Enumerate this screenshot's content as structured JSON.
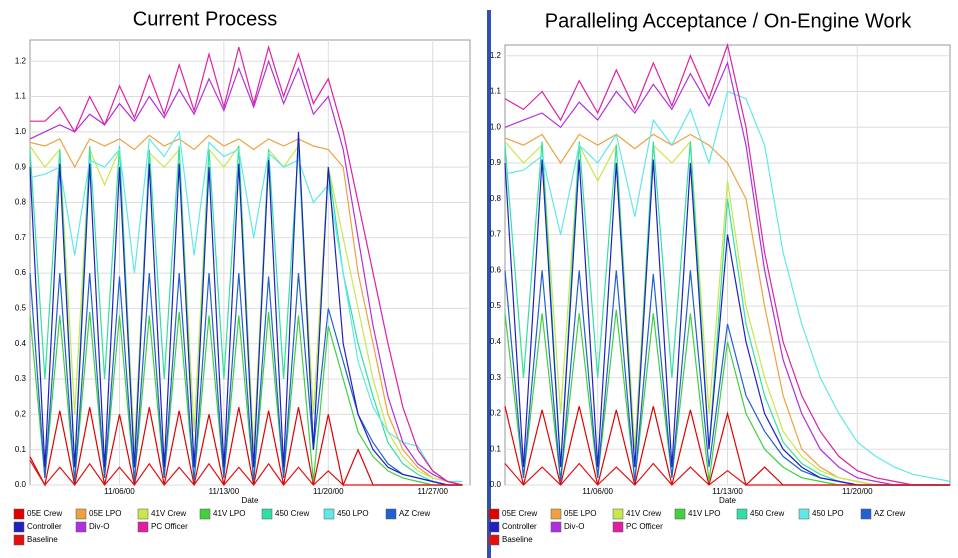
{
  "chart_data": [
    {
      "type": "line",
      "title": "Current Process",
      "x_label": "Date",
      "x": [
        0,
        1,
        2,
        3,
        4,
        5,
        6,
        7,
        8,
        9,
        10,
        11,
        12,
        13,
        14,
        15,
        16,
        17,
        18,
        19,
        20,
        21,
        22,
        23,
        24,
        25,
        26,
        27,
        28,
        29
      ],
      "xlim": [
        0,
        29.5
      ],
      "xticks": [
        {
          "value": 6,
          "label": "11/06/00"
        },
        {
          "value": 13,
          "label": "11/13/00"
        },
        {
          "value": 20,
          "label": "11/20/00"
        },
        {
          "value": 27,
          "label": "11/27/00"
        }
      ],
      "ylim": [
        0,
        1.26
      ],
      "yticks": [
        {
          "value": 0,
          "label": "0.0"
        },
        0.1,
        0.2,
        0.3,
        0.4,
        0.5,
        0.6,
        0.7,
        0.8,
        0.9,
        {
          "value": 1,
          "label": "1.0"
        },
        1.1,
        1.2
      ],
      "grid": true,
      "series": [
        {
          "name": "05E Crew",
          "color": "#e00000",
          "values": [
            0.08,
            0,
            0.21,
            0,
            0.22,
            0,
            0.2,
            0,
            0.22,
            0,
            0.21,
            0,
            0.2,
            0,
            0.22,
            0,
            0.21,
            0,
            0.22,
            0,
            0.2,
            0,
            0.1,
            0,
            0,
            0,
            0,
            0,
            0,
            0
          ]
        },
        {
          "name": "05E LPO",
          "color": "#f0a040",
          "values": [
            0.97,
            0.96,
            0.98,
            0.9,
            0.98,
            0.96,
            0.98,
            0.95,
            0.99,
            0.96,
            0.98,
            0.95,
            0.99,
            0.96,
            0.98,
            0.95,
            0.98,
            0.96,
            0.98,
            0.96,
            0.95,
            0.9,
            0.6,
            0.4,
            0.2,
            0.1,
            0.05,
            0.02,
            0.01,
            0
          ]
        },
        {
          "name": "41V Crew",
          "color": "#c8e84a",
          "values": [
            0.96,
            0.9,
            0.95,
            0.2,
            0.95,
            0.85,
            0.95,
            0.1,
            0.94,
            0.9,
            0.95,
            0.15,
            0.95,
            0.9,
            0.96,
            0.1,
            0.95,
            0.9,
            0.96,
            0.2,
            0.9,
            0.7,
            0.5,
            0.3,
            0.15,
            0.08,
            0.04,
            0.02,
            0.01,
            0
          ]
        },
        {
          "name": "41V LPO",
          "color": "#40d040",
          "values": [
            0.48,
            0.02,
            0.48,
            0.01,
            0.49,
            0.02,
            0.48,
            0.01,
            0.48,
            0.02,
            0.49,
            0.01,
            0.48,
            0.02,
            0.48,
            0.01,
            0.49,
            0.02,
            0.48,
            0.01,
            0.45,
            0.3,
            0.15,
            0.08,
            0.04,
            0.02,
            0.01,
            0,
            0,
            0
          ]
        },
        {
          "name": "450 Crew",
          "color": "#30e0a0",
          "values": [
            0.95,
            0.3,
            0.95,
            0.05,
            0.96,
            0.3,
            0.96,
            0.05,
            0.95,
            0.3,
            0.96,
            0.05,
            0.95,
            0.3,
            0.96,
            0.05,
            0.95,
            0.3,
            0.96,
            0.1,
            0.9,
            0.6,
            0.4,
            0.25,
            0.12,
            0.06,
            0.03,
            0.01,
            0,
            0
          ]
        },
        {
          "name": "450 LPO",
          "color": "#60e8e8",
          "values": [
            0.87,
            0.88,
            0.9,
            0.65,
            0.92,
            0.9,
            0.95,
            0.6,
            0.98,
            0.93,
            1.0,
            0.65,
            0.97,
            0.93,
            0.95,
            0.7,
            0.94,
            0.9,
            0.92,
            0.8,
            0.85,
            0.6,
            0.35,
            0.22,
            0.15,
            0.12,
            0.11,
            0.04,
            0.01,
            0.01
          ]
        },
        {
          "name": "AZ Crew",
          "color": "#2060d0",
          "values": [
            0.6,
            0.02,
            0.6,
            0.01,
            0.6,
            0.02,
            0.59,
            0.01,
            0.6,
            0.02,
            0.6,
            0.01,
            0.6,
            0.02,
            0.6,
            0.01,
            0.59,
            0.02,
            0.6,
            0.1,
            0.5,
            0.35,
            0.2,
            0.12,
            0.06,
            0.03,
            0.02,
            0.01,
            0,
            0
          ]
        },
        {
          "name": "Controller",
          "color": "#2020c0",
          "values": [
            0.9,
            0.05,
            0.91,
            0.05,
            0.91,
            0.05,
            0.9,
            0.05,
            0.91,
            0.05,
            0.91,
            0.05,
            0.9,
            0.05,
            0.91,
            0.05,
            0.92,
            0.05,
            1.0,
            0.1,
            0.9,
            0.4,
            0.2,
            0.1,
            0.05,
            0.03,
            0.02,
            0.01,
            0,
            0
          ]
        },
        {
          "name": "Div-O",
          "color": "#b030e0",
          "values": [
            0.98,
            1.0,
            1.02,
            1.0,
            1.05,
            1.02,
            1.08,
            1.03,
            1.1,
            1.04,
            1.12,
            1.05,
            1.15,
            1.06,
            1.18,
            1.07,
            1.2,
            1.08,
            1.18,
            1.05,
            1.1,
            0.95,
            0.7,
            0.45,
            0.25,
            0.12,
            0.06,
            0.03,
            0.01,
            0
          ]
        },
        {
          "name": "PC Officer",
          "color": "#e020a0",
          "values": [
            1.03,
            1.03,
            1.07,
            1.0,
            1.1,
            1.02,
            1.13,
            1.04,
            1.16,
            1.05,
            1.19,
            1.06,
            1.22,
            1.07,
            1.24,
            1.08,
            1.24,
            1.1,
            1.22,
            1.08,
            1.15,
            1.0,
            0.8,
            0.6,
            0.4,
            0.22,
            0.1,
            0.04,
            0.01,
            0
          ]
        },
        {
          "name": "Baseline",
          "color": "#e01010",
          "values": [
            0.07,
            0,
            0.05,
            0,
            0.06,
            0,
            0.05,
            0,
            0.06,
            0,
            0.05,
            0,
            0.06,
            0,
            0.05,
            0,
            0.06,
            0,
            0.05,
            0,
            0.04,
            0,
            0,
            0,
            0,
            0,
            0,
            0,
            0,
            0
          ]
        }
      ]
    },
    {
      "type": "line",
      "title": "Paralleling Acceptance / On-Engine Work",
      "x_label": "Date",
      "x": [
        1,
        2,
        3,
        4,
        5,
        6,
        7,
        8,
        9,
        10,
        11,
        12,
        13,
        14,
        15,
        16,
        17,
        18,
        19,
        20,
        21,
        22,
        23,
        24,
        25
      ],
      "xlim": [
        1,
        25
      ],
      "xticks": [
        {
          "value": 6,
          "label": "11/06/00"
        },
        {
          "value": 13,
          "label": "11/13/00"
        },
        {
          "value": 20,
          "label": "11/20/00"
        }
      ],
      "ylim": [
        0,
        1.23
      ],
      "yticks": [
        {
          "value": 0,
          "label": "0.0"
        },
        0.1,
        0.2,
        0.3,
        0.4,
        0.5,
        0.6,
        0.7,
        0.8,
        0.9,
        {
          "value": 1,
          "label": "1.0"
        },
        1.1,
        1.2
      ],
      "grid": true,
      "series": [
        {
          "name": "05E Crew",
          "color": "#e00000",
          "values": [
            0.22,
            0,
            0.21,
            0,
            0.22,
            0,
            0.21,
            0,
            0.22,
            0,
            0.21,
            0,
            0.2,
            0,
            0.05,
            0,
            0,
            0,
            0,
            0,
            0,
            0,
            0,
            0,
            0
          ]
        },
        {
          "name": "05E LPO",
          "color": "#f0a040",
          "values": [
            0.97,
            0.95,
            0.98,
            0.9,
            0.98,
            0.95,
            0.98,
            0.94,
            0.98,
            0.95,
            0.98,
            0.95,
            0.9,
            0.8,
            0.5,
            0.25,
            0.1,
            0.05,
            0.02,
            0.01,
            0,
            0,
            0,
            0,
            0
          ]
        },
        {
          "name": "41V Crew",
          "color": "#c8e84a",
          "values": [
            0.96,
            0.9,
            0.95,
            0.2,
            0.95,
            0.85,
            0.95,
            0.1,
            0.95,
            0.9,
            0.96,
            0.2,
            0.85,
            0.5,
            0.3,
            0.15,
            0.08,
            0.04,
            0.02,
            0.01,
            0,
            0,
            0,
            0,
            0
          ]
        },
        {
          "name": "41V LPO",
          "color": "#40d040",
          "values": [
            0.48,
            0.02,
            0.48,
            0.01,
            0.48,
            0.02,
            0.49,
            0.01,
            0.48,
            0.02,
            0.48,
            0.01,
            0.4,
            0.2,
            0.1,
            0.05,
            0.02,
            0.01,
            0,
            0,
            0,
            0,
            0,
            0,
            0
          ]
        },
        {
          "name": "450 Crew",
          "color": "#30e0a0",
          "values": [
            0.95,
            0.3,
            0.96,
            0.05,
            0.96,
            0.3,
            0.95,
            0.05,
            0.96,
            0.3,
            0.96,
            0.1,
            0.8,
            0.45,
            0.25,
            0.12,
            0.06,
            0.03,
            0.01,
            0,
            0,
            0,
            0,
            0,
            0
          ]
        },
        {
          "name": "450 LPO",
          "color": "#60e8e8",
          "values": [
            0.87,
            0.88,
            0.92,
            0.7,
            0.95,
            0.9,
            0.98,
            0.75,
            1.02,
            0.95,
            1.05,
            0.9,
            1.1,
            1.08,
            0.95,
            0.65,
            0.45,
            0.3,
            0.2,
            0.12,
            0.08,
            0.05,
            0.03,
            0.02,
            0.01
          ]
        },
        {
          "name": "AZ Crew",
          "color": "#2060d0",
          "values": [
            0.6,
            0.02,
            0.6,
            0.01,
            0.6,
            0.02,
            0.6,
            0.01,
            0.59,
            0.02,
            0.6,
            0.05,
            0.45,
            0.25,
            0.15,
            0.08,
            0.04,
            0.02,
            0.01,
            0,
            0,
            0,
            0,
            0,
            0
          ]
        },
        {
          "name": "Controller",
          "color": "#2020c0",
          "values": [
            0.9,
            0.05,
            0.91,
            0.05,
            0.91,
            0.05,
            0.9,
            0.05,
            0.91,
            0.05,
            0.9,
            0.1,
            0.7,
            0.4,
            0.2,
            0.1,
            0.05,
            0.02,
            0.01,
            0,
            0,
            0,
            0,
            0,
            0
          ]
        },
        {
          "name": "Div-O",
          "color": "#b030e0",
          "values": [
            1.0,
            1.02,
            1.04,
            1.0,
            1.07,
            1.02,
            1.1,
            1.04,
            1.12,
            1.05,
            1.15,
            1.06,
            1.18,
            0.95,
            0.6,
            0.35,
            0.2,
            0.1,
            0.05,
            0.02,
            0.01,
            0,
            0,
            0,
            0
          ]
        },
        {
          "name": "PC Officer",
          "color": "#e020a0",
          "values": [
            1.08,
            1.05,
            1.1,
            1.02,
            1.13,
            1.04,
            1.16,
            1.05,
            1.18,
            1.06,
            1.2,
            1.08,
            1.23,
            1.0,
            0.65,
            0.4,
            0.25,
            0.15,
            0.08,
            0.04,
            0.02,
            0.01,
            0,
            0,
            0
          ]
        },
        {
          "name": "Baseline",
          "color": "#e01010",
          "values": [
            0.06,
            0,
            0.05,
            0,
            0.06,
            0,
            0.05,
            0,
            0.06,
            0,
            0.05,
            0,
            0.04,
            0,
            0,
            0,
            0,
            0,
            0,
            0,
            0,
            0,
            0,
            0,
            0
          ]
        }
      ]
    }
  ]
}
